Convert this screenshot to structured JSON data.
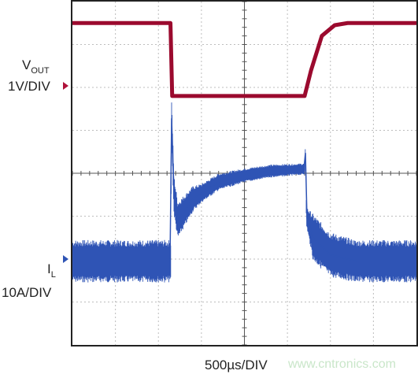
{
  "labels": {
    "vout_main": "V",
    "vout_sub": "OUT",
    "vout_scale": "1V/DIV",
    "il_main": "I",
    "il_sub": "L",
    "il_scale": "10A/DIV",
    "time_scale": "500µs/DIV",
    "watermark": "www.cntronics.com"
  },
  "colors": {
    "vout": "#9b0a2e",
    "il": "#2f54b5",
    "grid": "#bdbdbd",
    "frame": "#222222",
    "marker": "#b0123a",
    "il_marker": "#2f54b5"
  },
  "chart_data": {
    "type": "line",
    "title": "",
    "xlabel": "500µs/DIV",
    "ylabel": "",
    "grid": true,
    "divisions": {
      "x": 8,
      "y": 8
    },
    "x_range_div": [
      0,
      8
    ],
    "y_range_div": [
      0,
      8
    ],
    "series": [
      {
        "name": "VOUT",
        "scale": "1V/DIV",
        "points_div": [
          [
            0,
            7.5
          ],
          [
            2.28,
            7.5
          ],
          [
            2.32,
            5.8
          ],
          [
            5.4,
            5.8
          ],
          [
            5.55,
            6.4
          ],
          [
            5.8,
            7.2
          ],
          [
            6.1,
            7.45
          ],
          [
            6.4,
            7.5
          ],
          [
            8,
            7.5
          ]
        ]
      },
      {
        "name": "IL",
        "scale": "10A/DIV",
        "band_center_div": [
          [
            0,
            1.95
          ],
          [
            2.29,
            1.95
          ],
          [
            2.3,
            5.5
          ],
          [
            2.36,
            3.5
          ],
          [
            2.45,
            2.9
          ],
          [
            2.8,
            3.4
          ],
          [
            3.4,
            3.8
          ],
          [
            4.0,
            3.95
          ],
          [
            4.6,
            4.05
          ],
          [
            5.4,
            4.1
          ],
          [
            5.42,
            4.5
          ],
          [
            5.44,
            3.0
          ],
          [
            5.6,
            2.5
          ],
          [
            6.0,
            2.1
          ],
          [
            6.6,
            1.95
          ],
          [
            8,
            1.95
          ]
        ],
        "band_half_width_div": [
          [
            0,
            0.45
          ],
          [
            2.29,
            0.45
          ],
          [
            2.45,
            0.4
          ],
          [
            3.0,
            0.2
          ],
          [
            4.0,
            0.15
          ],
          [
            5.4,
            0.12
          ],
          [
            5.6,
            0.5
          ],
          [
            6.5,
            0.45
          ],
          [
            8,
            0.45
          ]
        ]
      }
    ]
  }
}
